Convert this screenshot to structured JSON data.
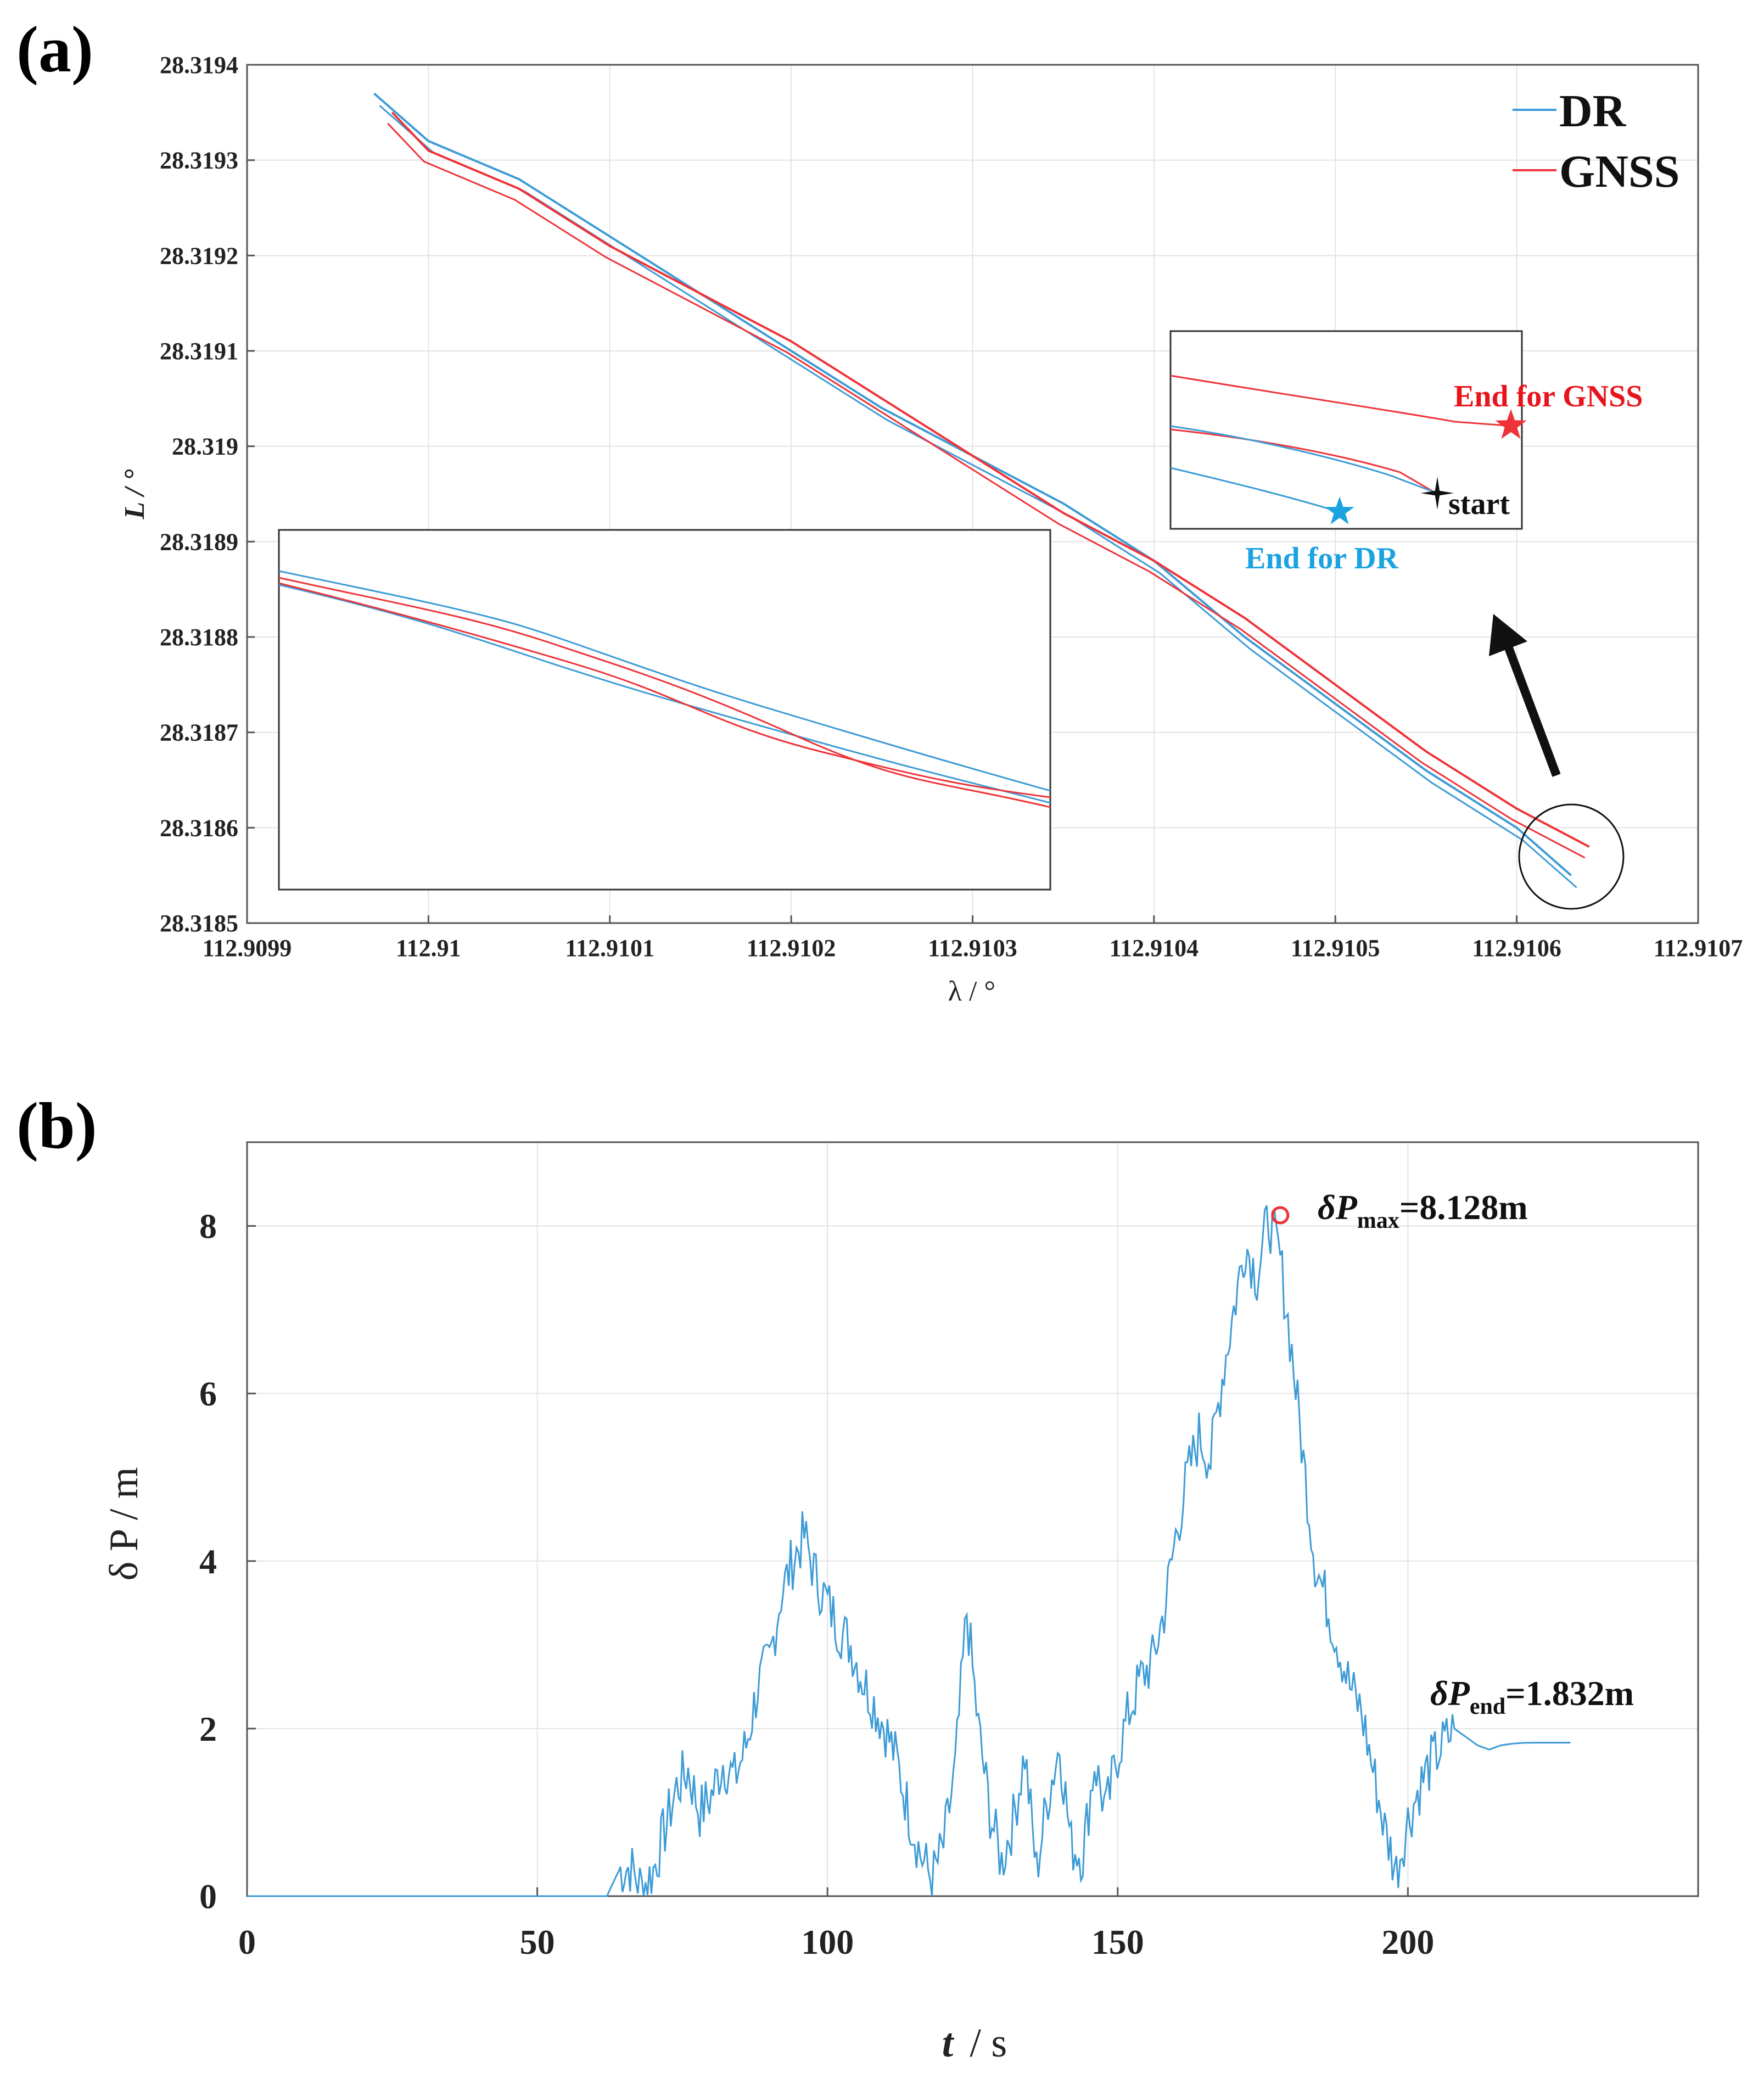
{
  "panel_a_label": "(a)",
  "panel_b_label": "(b)",
  "colors": {
    "dr": "#3d9bd6",
    "gnss": "#ee3338",
    "marker_black": "#111111",
    "circle": "#111111"
  },
  "chart_data": [
    {
      "type": "line",
      "panel": "(a)",
      "xlabel": "λ / °",
      "ylabel": "L / °",
      "xlim": [
        112.9099,
        112.9107
      ],
      "ylim": [
        28.3185,
        28.3194
      ],
      "x_ticks": [
        "112.9099",
        "112.91",
        "112.9101",
        "112.9102",
        "112.9103",
        "112.9104",
        "112.9105",
        "112.9106",
        "112.9107"
      ],
      "y_ticks": [
        "28.3185",
        "28.3186",
        "28.3187",
        "28.3188",
        "28.3189",
        "28.319",
        "28.3191",
        "28.3192",
        "28.3193",
        "28.3194"
      ],
      "grid": true,
      "legend_position": "top-right",
      "series": [
        {
          "name": "DR",
          "color": "#3d9bd6",
          "x": [
            112.90997,
            112.91,
            112.91005,
            112.9101,
            112.91015,
            112.9102,
            112.91025,
            112.9103,
            112.91035,
            112.9104,
            112.91045,
            112.9105,
            112.91055,
            112.9106,
            112.91063
          ],
          "y": [
            28.31937,
            28.31932,
            28.31928,
            28.31922,
            28.31916,
            28.3191,
            28.31904,
            28.31899,
            28.31894,
            28.31888,
            28.3188,
            28.31873,
            28.31866,
            28.3186,
            28.31855
          ]
        },
        {
          "name": "GNSS",
          "color": "#ee3338",
          "x": [
            112.90998,
            112.91,
            112.91005,
            112.9101,
            112.91015,
            112.9102,
            112.91025,
            112.9103,
            112.91035,
            112.9104,
            112.91045,
            112.9105,
            112.91055,
            112.9106,
            112.91064
          ],
          "y": [
            28.31935,
            28.31931,
            28.31927,
            28.31921,
            28.31916,
            28.31911,
            28.31905,
            28.31899,
            28.31893,
            28.31888,
            28.31882,
            28.31875,
            28.31868,
            28.31862,
            28.31858
          ]
        }
      ],
      "annotations": {
        "end_gnss": "End for GNSS",
        "end_dr": "End for DR",
        "start": "start"
      },
      "legend": [
        "DR",
        "GNSS"
      ]
    },
    {
      "type": "line",
      "panel": "(b)",
      "xlabel": "t",
      "xlabel_unit": "/ s",
      "ylabel": "δ P / m",
      "xlim": [
        0,
        250
      ],
      "ylim": [
        0,
        9
      ],
      "x_ticks": [
        "0",
        "50",
        "100",
        "150",
        "200"
      ],
      "y_ticks": [
        "0",
        "2",
        "4",
        "6",
        "8"
      ],
      "grid": true,
      "series": [
        {
          "name": "",
          "color": "#3d9bd6",
          "x": [
            0,
            62,
            64,
            66,
            68,
            70,
            72,
            74,
            76,
            78,
            80,
            82,
            84,
            86,
            88,
            90,
            92,
            94,
            96,
            98,
            100,
            102,
            104,
            106,
            108,
            110,
            112,
            114,
            116,
            118,
            120,
            122,
            124,
            126,
            128,
            130,
            132,
            134,
            136,
            138,
            140,
            142,
            144,
            146,
            148,
            150,
            152,
            154,
            156,
            158,
            160,
            162,
            164,
            166,
            168,
            170,
            172,
            174,
            176,
            178,
            180,
            182,
            184,
            186,
            188,
            190,
            192,
            194,
            196,
            198,
            200,
            202,
            204,
            206,
            208,
            210,
            212,
            214,
            216,
            218,
            220,
            222,
            224,
            228
          ],
          "y": [
            0,
            0,
            0.3,
            0.35,
            0.1,
            0.3,
            0.8,
            1.3,
            1.5,
            1.0,
            1.2,
            1.6,
            1.4,
            1.8,
            2.5,
            2.8,
            3.6,
            4.0,
            4.3,
            3.8,
            3.5,
            3.2,
            3.0,
            2.6,
            2.3,
            2.0,
            1.6,
            1.0,
            0.5,
            0.2,
            0.6,
            1.5,
            3.4,
            2.0,
            1.0,
            0.4,
            0.9,
            1.7,
            0.3,
            1.2,
            1.8,
            0.6,
            0.5,
            1.6,
            1.0,
            1.7,
            2.2,
            2.6,
            2.8,
            3.4,
            4.3,
            5.0,
            5.5,
            5.2,
            6.2,
            7.0,
            7.8,
            7.4,
            8.1,
            7.6,
            6.5,
            5.2,
            4.0,
            3.5,
            3.0,
            2.5,
            2.2,
            1.5,
            0.8,
            0.3,
            0.9,
            1.3,
            1.6,
            1.8,
            2.0,
            1.9,
            1.8,
            1.75,
            1.8,
            1.82,
            1.83,
            1.832,
            1.832,
            1.832
          ]
        }
      ],
      "annotations": {
        "max_prefix": "δP",
        "max_sub": "max",
        "max_value": "=8.128m",
        "max_point": {
          "t": 178,
          "value": 8.128
        },
        "end_prefix": "δP",
        "end_sub": "end",
        "end_value": "=1.832m"
      }
    }
  ]
}
